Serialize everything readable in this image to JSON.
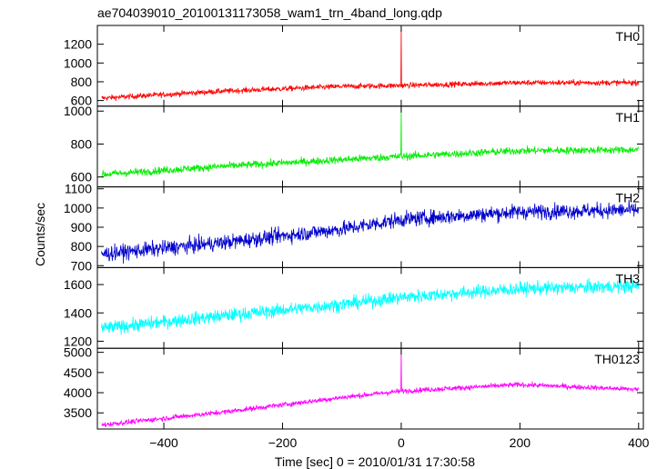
{
  "title": "ae704039010_20100131173058_wam1_trn_4band_long.qdp",
  "chart_data": {
    "type": "line",
    "title": "ae704039010_20100131173058_wam1_trn_4band_long.qdp",
    "xlabel": "Time [sec] 0 = 2010/01/31 17:30:58",
    "ylabel": "Counts/sec",
    "xlim": [
      -512,
      408
    ],
    "xticks": [
      -400,
      -200,
      0,
      200,
      400
    ],
    "x_tick_labels": [
      "−400",
      "−200",
      "0",
      "200",
      "400"
    ],
    "grid": false,
    "panels": [
      {
        "name": "TH0",
        "color": "#ff0000",
        "ylim": [
          540,
          1400
        ],
        "yticks": [
          600,
          800,
          1000,
          1200
        ],
        "baseline": [
          [
            -505,
            625
          ],
          [
            -300,
            700
          ],
          [
            -100,
            750
          ],
          [
            0,
            760
          ],
          [
            200,
            790
          ],
          [
            400,
            790
          ]
        ],
        "noise": 28,
        "spike": {
          "x": 0,
          "y": 1380
        }
      },
      {
        "name": "TH1",
        "color": "#00ee00",
        "ylim": [
          540,
          1030
        ],
        "yticks": [
          600,
          800,
          1000
        ],
        "baseline": [
          [
            -505,
            615
          ],
          [
            -300,
            665
          ],
          [
            -100,
            705
          ],
          [
            0,
            725
          ],
          [
            200,
            760
          ],
          [
            400,
            765
          ]
        ],
        "noise": 22,
        "spike": {
          "x": 0,
          "y": 1020
        }
      },
      {
        "name": "TH2",
        "color": "#0000cc",
        "ylim": [
          690,
          1110
        ],
        "yticks": [
          700,
          800,
          900,
          1000,
          1100
        ],
        "baseline": [
          [
            -505,
            760
          ],
          [
            -300,
            820
          ],
          [
            -100,
            890
          ],
          [
            0,
            940
          ],
          [
            200,
            980
          ],
          [
            400,
            990
          ]
        ],
        "noise": 38
      },
      {
        "name": "TH3",
        "color": "#00ffff",
        "ylim": [
          1150,
          1720
        ],
        "yticks": [
          1200,
          1400,
          1600
        ],
        "baseline": [
          [
            -505,
            1290
          ],
          [
            -300,
            1380
          ],
          [
            -100,
            1460
          ],
          [
            0,
            1510
          ],
          [
            200,
            1570
          ],
          [
            400,
            1590
          ]
        ],
        "noise": 45
      },
      {
        "name": "TH0123",
        "color": "#ff00ff",
        "ylim": [
          3100,
          5100
        ],
        "yticks": [
          3500,
          4000,
          4500,
          5000
        ],
        "baseline": [
          [
            -505,
            3200
          ],
          [
            -300,
            3520
          ],
          [
            -100,
            3880
          ],
          [
            0,
            4040
          ],
          [
            200,
            4200
          ],
          [
            400,
            4080
          ]
        ],
        "noise": 60,
        "spike": {
          "x": 0,
          "y": 5080
        }
      }
    ]
  }
}
